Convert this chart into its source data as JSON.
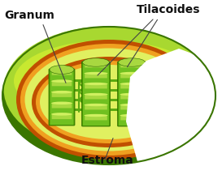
{
  "background_color": "#ffffff",
  "labels": {
    "granum": "Granum",
    "tilacoides": "Tilacoides",
    "estroma": "Estroma"
  },
  "label_fontsize": 10,
  "label_fontweight": "bold",
  "label_color": "#111111",
  "colors": {
    "outer_dark_green": "#3a7500",
    "outer_mid_green": "#6db800",
    "outer_light_green": "#a8d830",
    "outer_yellow_green": "#c8e830",
    "orange_dark": "#c05000",
    "orange_mid": "#e07010",
    "orange_light": "#f0a020",
    "stroma_yellow": "#d0e840",
    "stroma_light": "#e0f060",
    "thylakoid_dark": "#2a6800",
    "thylakoid_base": "#4a9800",
    "thylakoid_mid": "#70c020",
    "thylakoid_light": "#a8d840",
    "thylakoid_highlight": "#d0f060",
    "lamella_color": "#5aaa10"
  }
}
